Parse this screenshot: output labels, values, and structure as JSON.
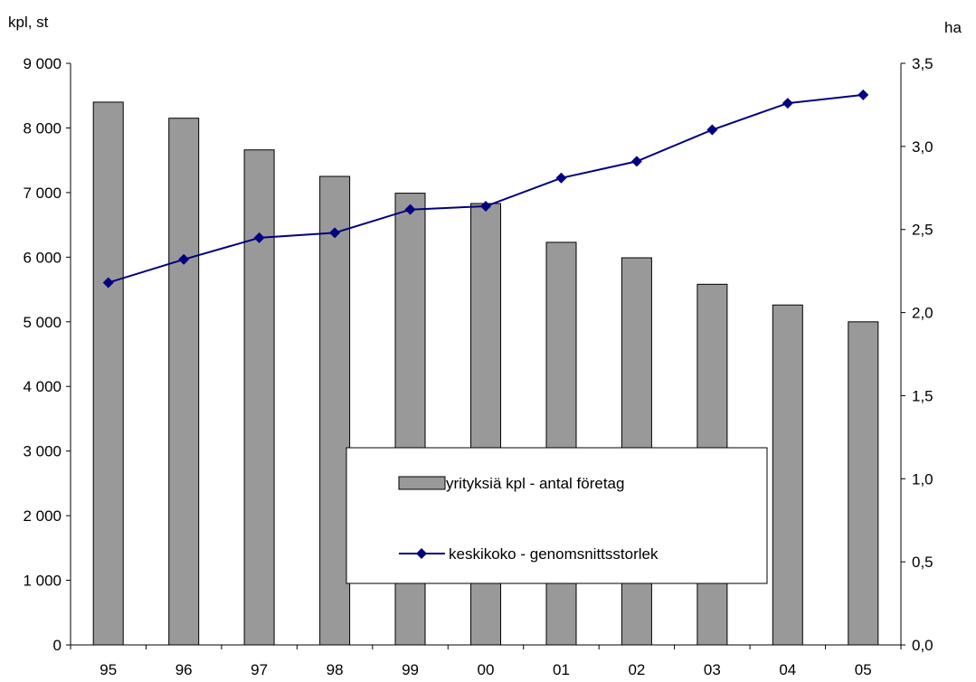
{
  "chart_data": {
    "type": "bar+line",
    "categories": [
      "95",
      "96",
      "97",
      "98",
      "99",
      "00",
      "01",
      "02",
      "03",
      "04",
      "05"
    ],
    "series": [
      {
        "name": "yrityksiä kpl - antal företag",
        "type": "bar",
        "axis": "left",
        "color": "#999999",
        "values": [
          8400,
          8150,
          7660,
          7250,
          6990,
          6830,
          6230,
          5990,
          5580,
          5260,
          5000
        ]
      },
      {
        "name": "keskikoko - genomsnittsstorlek",
        "type": "line",
        "axis": "right",
        "color": "#000080",
        "marker": "diamond",
        "values": [
          2.18,
          2.32,
          2.45,
          2.48,
          2.62,
          2.64,
          2.81,
          2.91,
          3.1,
          3.26,
          3.31
        ]
      }
    ],
    "y_left": {
      "label": "kpl, st",
      "range": [
        0,
        9000
      ],
      "ticks": [
        "0",
        "1 000",
        "2 000",
        "3 000",
        "4 000",
        "5 000",
        "6 000",
        "7 000",
        "8 000",
        "9 000"
      ]
    },
    "y_right": {
      "label": "ha",
      "range": [
        0,
        3.5
      ],
      "ticks": [
        "0,0",
        "0,5",
        "1,0",
        "1,5",
        "2,0",
        "2,5",
        "3,0",
        "3,5"
      ]
    },
    "grid": false,
    "legend_position": "center-right"
  }
}
